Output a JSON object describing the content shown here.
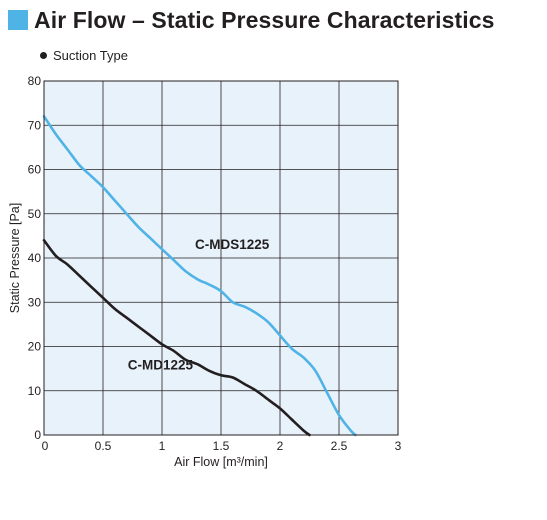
{
  "header": {
    "title": "Air Flow – Static Pressure Characteristics",
    "subtitle": "Suction Type"
  },
  "colors": {
    "accent": "#4fb3e6",
    "plot_background": "#e8f2fb",
    "curve_dark": "#231f20",
    "curve_light": "#4fb3e6"
  },
  "chart_data": {
    "type": "line",
    "title": "",
    "xlabel": "Air Flow [m³/min]",
    "ylabel": "Static Pressure [Pa]",
    "xlim": [
      0,
      3
    ],
    "ylim": [
      0,
      80
    ],
    "x_ticks": [
      "0",
      "0.5",
      "1",
      "1.5",
      "2",
      "2.5",
      "3"
    ],
    "y_ticks": [
      "0",
      "10",
      "20",
      "30",
      "40",
      "50",
      "60",
      "70",
      "80"
    ],
    "x_tick_values": [
      0,
      0.5,
      1,
      1.5,
      2,
      2.5,
      3
    ],
    "y_tick_values": [
      0,
      10,
      20,
      30,
      40,
      50,
      60,
      70,
      80
    ],
    "grid": true,
    "series": [
      {
        "name": "C-MDS1225",
        "color": "#4fb3e6",
        "points": [
          [
            0,
            72
          ],
          [
            0.1,
            68
          ],
          [
            0.2,
            64.5
          ],
          [
            0.3,
            61
          ],
          [
            0.4,
            58.5
          ],
          [
            0.5,
            56
          ],
          [
            0.6,
            53
          ],
          [
            0.7,
            50
          ],
          [
            0.8,
            47
          ],
          [
            0.9,
            44.5
          ],
          [
            1.0,
            42
          ],
          [
            1.1,
            39.5
          ],
          [
            1.2,
            37
          ],
          [
            1.3,
            35.2
          ],
          [
            1.4,
            34
          ],
          [
            1.5,
            32.5
          ],
          [
            1.6,
            30
          ],
          [
            1.7,
            29
          ],
          [
            1.8,
            27.5
          ],
          [
            1.9,
            25.5
          ],
          [
            2.0,
            22.5
          ],
          [
            2.1,
            19.5
          ],
          [
            2.2,
            17.5
          ],
          [
            2.3,
            14.5
          ],
          [
            2.4,
            9.5
          ],
          [
            2.5,
            4.5
          ],
          [
            2.6,
            1
          ],
          [
            2.64,
            0
          ]
        ]
      },
      {
        "name": "C-MD1225",
        "color": "#231f20",
        "points": [
          [
            0,
            44
          ],
          [
            0.1,
            40.5
          ],
          [
            0.2,
            38.5
          ],
          [
            0.3,
            36
          ],
          [
            0.4,
            33.5
          ],
          [
            0.5,
            31
          ],
          [
            0.6,
            28.5
          ],
          [
            0.7,
            26.5
          ],
          [
            0.8,
            24.5
          ],
          [
            0.9,
            22.5
          ],
          [
            1.0,
            20.5
          ],
          [
            1.1,
            19
          ],
          [
            1.2,
            17
          ],
          [
            1.3,
            16
          ],
          [
            1.4,
            14.5
          ],
          [
            1.5,
            13.5
          ],
          [
            1.6,
            13
          ],
          [
            1.7,
            11.5
          ],
          [
            1.8,
            10
          ],
          [
            1.9,
            8
          ],
          [
            2.0,
            6
          ],
          [
            2.1,
            3.5
          ],
          [
            2.2,
            1
          ],
          [
            2.25,
            0
          ]
        ]
      }
    ]
  }
}
